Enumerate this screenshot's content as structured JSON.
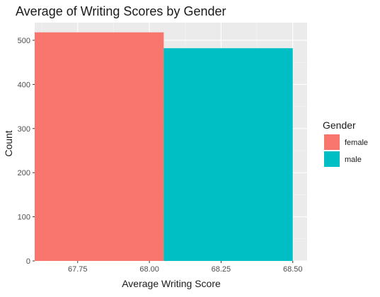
{
  "chart_data": {
    "type": "bar",
    "title": "Average of Writing Scores by Gender",
    "xlabel": "Average Writing Score",
    "ylabel": "Count",
    "xlim": [
      67.6,
      68.55
    ],
    "ylim": [
      0,
      540
    ],
    "x_ticks": [
      67.75,
      68.0,
      68.25,
      68.5
    ],
    "x_tick_labels": [
      "67.75",
      "68.00",
      "68.25",
      "68.50"
    ],
    "y_ticks": [
      0,
      100,
      200,
      300,
      400,
      500
    ],
    "y_tick_labels": [
      "0",
      "100",
      "200",
      "300",
      "400",
      "500"
    ],
    "grid": true,
    "legend": {
      "title": "Gender",
      "placement": "right"
    },
    "series": [
      {
        "name": "female",
        "color": "#F8766D",
        "x_start": 67.6,
        "x_end": 68.05,
        "value": 518
      },
      {
        "name": "male",
        "color": "#00BFC4",
        "x_start": 68.05,
        "x_end": 68.5,
        "value": 482
      }
    ]
  }
}
